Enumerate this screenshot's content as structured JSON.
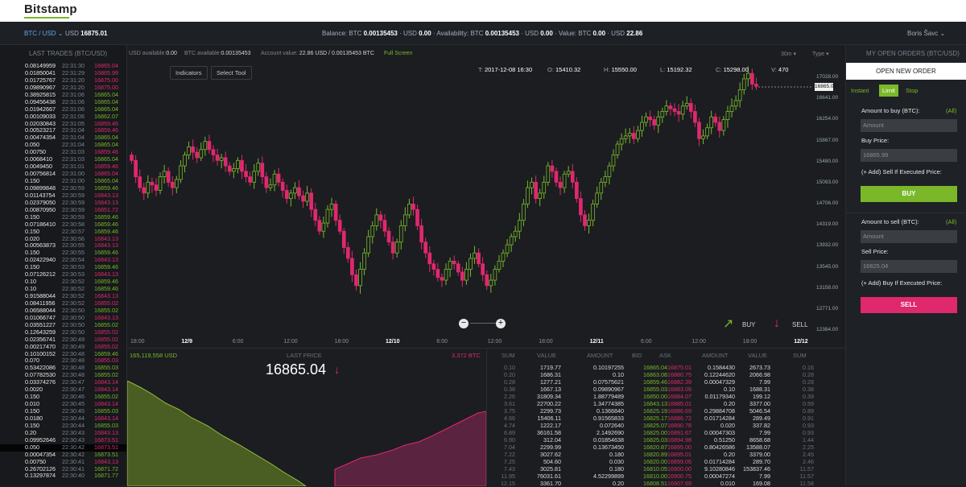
{
  "app": {
    "logo": "Bitstamp"
  },
  "header": {
    "pair": "BTC / USD ⌄",
    "price_label": "USD",
    "price": "16875.01",
    "balance_label": "Balance: BTC",
    "balance_btc": "0.00135453",
    "balance_usd_label": "· USD",
    "balance_usd": "0.00",
    "avail_label": "· Availability: BTC",
    "avail_btc": "0.00135453",
    "avail_usd_label": "· USD",
    "avail_usd": "0.00",
    "value_label": "· Value: BTC",
    "value_btc": "0.00",
    "value_usd_label": "· USD",
    "value_usd": "22.86",
    "user": "Boris Šavc ⌄"
  },
  "last_trades": {
    "title": "LAST TRADES (BTC/USD)",
    "rows": [
      [
        "0.08149959",
        "22:31:30",
        "16865.04",
        "r"
      ],
      [
        "0.01850041",
        "22:31:29",
        "16865.99",
        "r"
      ],
      [
        "0.01725767",
        "22:31:20",
        "16875.00",
        "r"
      ],
      [
        "0.09890967",
        "22:31:20",
        "16875.00",
        "r"
      ],
      [
        "0.38925815",
        "22:31:06",
        "16865.04",
        "g"
      ],
      [
        "0.09456438",
        "22:31:06",
        "16865.04",
        "g"
      ],
      [
        "0.01942667",
        "22:31:06",
        "16865.04",
        "g"
      ],
      [
        "0.00109033",
        "22:31:06",
        "16862.07",
        "g"
      ],
      [
        "0.02030843",
        "22:31:05",
        "16859.46",
        "r"
      ],
      [
        "0.00523217",
        "22:31:04",
        "16859.46",
        "r"
      ],
      [
        "0.00474354",
        "22:31:04",
        "16865.04",
        "g"
      ],
      [
        "0.050",
        "22:31:04",
        "16865.04",
        "g"
      ],
      [
        "0.00750",
        "22:31:03",
        "16859.46",
        "r"
      ],
      [
        "0.0068410",
        "22:31:03",
        "16865.04",
        "g"
      ],
      [
        "0.0049450",
        "22:31:01",
        "16859.46",
        "r"
      ],
      [
        "0.00756814",
        "22:31:00",
        "16865.04",
        "r"
      ],
      [
        "0.150",
        "22:31:00",
        "16865.04",
        "g"
      ],
      [
        "0.09899848",
        "22:30:59",
        "16859.46",
        "g"
      ],
      [
        "0.01143754",
        "22:30:59",
        "16843.13",
        "r"
      ],
      [
        "0.02379050",
        "22:30:59",
        "16843.13",
        "r"
      ],
      [
        "0.00870950",
        "22:30:59",
        "16851.72",
        "r"
      ],
      [
        "0.150",
        "22:30:59",
        "16859.46",
        "g"
      ],
      [
        "0.07186410",
        "22:30:58",
        "16859.46",
        "g"
      ],
      [
        "0.150",
        "22:30:57",
        "16859.46",
        "g"
      ],
      [
        "0.020",
        "22:30:56",
        "16843.13",
        "r"
      ],
      [
        "0.00563873",
        "22:30:55",
        "16843.13",
        "r"
      ],
      [
        "0.150",
        "22:30:55",
        "16859.46",
        "g"
      ],
      [
        "0.02422940",
        "22:30:54",
        "16843.13",
        "r"
      ],
      [
        "0.150",
        "22:30:53",
        "16859.46",
        "g"
      ],
      [
        "0.07126212",
        "22:30:53",
        "16843.13",
        "r"
      ],
      [
        "0.10",
        "22:30:52",
        "16859.46",
        "g"
      ],
      [
        "0.10",
        "22:30:52",
        "16859.46",
        "g"
      ],
      [
        "0.91588044",
        "22:30:52",
        "16843.13",
        "r"
      ],
      [
        "0.08411956",
        "22:30:52",
        "16855.02",
        "r"
      ],
      [
        "0.06588044",
        "22:30:50",
        "16855.02",
        "g"
      ],
      [
        "0.01066747",
        "22:30:50",
        "16843.13",
        "r"
      ],
      [
        "0.03551227",
        "22:30:50",
        "16855.02",
        "g"
      ],
      [
        "0.12643259",
        "22:30:50",
        "16855.02",
        "r"
      ],
      [
        "0.02356741",
        "22:30:49",
        "16855.02",
        "r"
      ],
      [
        "0.00217470",
        "22:30:49",
        "16855.02",
        "r"
      ],
      [
        "0.10100152",
        "22:30:48",
        "16859.46",
        "g"
      ],
      [
        "0.070",
        "22:30:48",
        "16855.03",
        "r"
      ],
      [
        "0.53422086",
        "22:30:48",
        "16855.03",
        "g"
      ],
      [
        "0.07782530",
        "22:30:48",
        "16855.02",
        "g"
      ],
      [
        "0.03374276",
        "22:30:47",
        "16843.14",
        "r"
      ],
      [
        "0.0020",
        "22:30:47",
        "16843.14",
        "r"
      ],
      [
        "0.150",
        "22:30:46",
        "16855.02",
        "g"
      ],
      [
        "0.010",
        "22:30:45",
        "16843.14",
        "r"
      ],
      [
        "0.150",
        "22:30:45",
        "16855.03",
        "g"
      ],
      [
        "0.0180",
        "22:30:44",
        "16843.14",
        "r"
      ],
      [
        "0.150",
        "22:30:44",
        "16855.03",
        "g"
      ],
      [
        "0.20",
        "22:30:43",
        "16843.13",
        "r"
      ],
      [
        "0.09952646",
        "22:30:43",
        "16873.51",
        "r"
      ],
      [
        "0.050",
        "22:30:42",
        "16873.51",
        "r"
      ],
      [
        "0.00047354",
        "22:30:42",
        "16873.51",
        "g"
      ],
      [
        "0.00750",
        "22:30:41",
        "16843.13",
        "r"
      ],
      [
        "0.26702126",
        "22:30:41",
        "16871.72",
        "g"
      ],
      [
        "0.13297874",
        "22:30:40",
        "16871.77",
        "g"
      ]
    ]
  },
  "chart": {
    "balance_line": "USD available:",
    "usd_avail": "0.00",
    "btc_label": "BTC available:",
    "btc_avail": "0.00135453",
    "acct_label": "Account value:",
    "acct_value": "22.86 USD / 0.00135453 BTC",
    "fullscreen": "Full Screen",
    "interval": "30m ▾",
    "type": "Type ▾",
    "indicators": "Indicators",
    "select_tool": "Select Tool",
    "t_label": "T:",
    "t": "2017-12-08 16:30",
    "o_label": "O:",
    "o": "15410.32",
    "h_label": "H:",
    "h": "15550.00",
    "l_label": "L:",
    "l": "15192.32",
    "c_label": "C:",
    "c": "15298.00",
    "v_label": "V:",
    "v": "470",
    "current": "16865.04",
    "buy": "BUY",
    "sell": "SELL",
    "zoom_in": "+",
    "zoom_out": "−"
  },
  "chart_data": {
    "type": "candlestick",
    "y_ticks": [
      "17028.00",
      "16641.00",
      "16254.00",
      "15867.00",
      "15480.00",
      "15093.00",
      "14706.00",
      "14319.00",
      "13932.00",
      "13545.00",
      "13158.00",
      "12771.00",
      "12384.00"
    ],
    "x_ticks": [
      {
        "label": "18:00"
      },
      {
        "label": "12/9",
        "bold": true
      },
      {
        "label": "6:00"
      },
      {
        "label": "12:00"
      },
      {
        "label": "18:00"
      },
      {
        "label": "12/10",
        "bold": true
      },
      {
        "label": "6:00"
      },
      {
        "label": "12:00"
      },
      {
        "label": "18:00"
      },
      {
        "label": "12/11",
        "bold": true
      },
      {
        "label": "6:00"
      },
      {
        "label": "12:00"
      },
      {
        "label": "18:00"
      },
      {
        "label": "12/12",
        "bold": true
      }
    ],
    "closes": [
      15500,
      15200,
      15000,
      14900,
      15100,
      15050,
      14950,
      15200,
      15300,
      15100,
      15000,
      15150,
      15400,
      15600,
      15750,
      15650,
      15550,
      15700,
      15850,
      15700,
      15600,
      15500,
      15550,
      15400,
      15300,
      15350,
      15500,
      15300,
      15200,
      15100,
      15300,
      15450,
      15200,
      15000,
      15050,
      15250,
      15100,
      14950,
      14800,
      14900,
      15000,
      14850,
      14750,
      14900,
      14600,
      14400,
      14200,
      14350,
      14600,
      14700,
      14400,
      14200,
      13900,
      13700,
      13400,
      13200,
      13500,
      13800,
      14100,
      14300,
      14500,
      14400,
      14200,
      14000,
      13800,
      14000,
      14300,
      14500,
      14700,
      14600,
      14300,
      14000,
      13800,
      13600,
      13500,
      13350,
      13300,
      13500,
      13650,
      13600,
      13450,
      13300,
      13500,
      13700,
      13800,
      13600,
      13400,
      13200,
      13300,
      13500,
      13650,
      13800,
      13950,
      14100,
      14200,
      14400,
      14700,
      15000,
      15100,
      14800,
      14900,
      15100,
      15400,
      15300,
      15100,
      15000,
      15250,
      15300,
      15100,
      14800,
      14500,
      14300,
      14400,
      14700,
      14900,
      15100,
      15200,
      15400,
      15600,
      15800,
      15900,
      15950,
      16000,
      15900,
      16050,
      16200,
      16300,
      16250,
      16150,
      16300,
      16400,
      16500,
      16450,
      16400,
      16350,
      16500,
      16550,
      16400,
      16200,
      15900,
      15950,
      16100,
      16300,
      16200,
      16050,
      16250,
      16400,
      16500,
      16600,
      16800,
      17000,
      17100,
      16900,
      16865
    ]
  },
  "depth": {
    "bid_total": "165,119,558 USD",
    "last_price_label": "LAST PRICE",
    "ask_total": "3,372 BTC",
    "last_price": "16865.04",
    "arrow": "↓"
  },
  "orderbook": {
    "headers": [
      "SUM",
      "VALUE",
      "AMOUNT",
      "BID",
      "ASK",
      "AMOUNT",
      "VALUE",
      "SUM"
    ],
    "rows": [
      [
        "0.10",
        "1719.77",
        "0.10197255",
        "16865.04",
        "16875.01",
        "0.1584430",
        "2673.73",
        "0.16"
      ],
      [
        "0.20",
        "1686.31",
        "0.10",
        "16863.08",
        "16880.75",
        "0.12244620",
        "2066.98",
        "0.28"
      ],
      [
        "0.28",
        "1277.21",
        "0.07575621",
        "16859.46",
        "16882.39",
        "0.00047329",
        "7.99",
        "0.28"
      ],
      [
        "0.38",
        "1667.13",
        "0.09890967",
        "16855.03",
        "16883.09",
        "0.10",
        "1688.31",
        "0.38"
      ],
      [
        "2.26",
        "31809.34",
        "1.88779489",
        "16850.00",
        "16884.07",
        "0.01179340",
        "199.12",
        "0.39"
      ],
      [
        "3.61",
        "22700.22",
        "1.34774385",
        "16843.13",
        "16885.01",
        "0.20",
        "3377.00",
        "0.59"
      ],
      [
        "3.75",
        "2299.73",
        "0.1366840",
        "16825.19",
        "16886.69",
        "0.29884708",
        "5046.54",
        "0.89"
      ],
      [
        "4.66",
        "15406.11",
        "0.91565833",
        "16825.17",
        "16886.72",
        "0.01714284",
        "289.49",
        "0.91"
      ],
      [
        "4.74",
        "1222.17",
        "0.072640",
        "16825.07",
        "16890.78",
        "0.020",
        "337.82",
        "0.93"
      ],
      [
        "6.89",
        "36161.58",
        "2.1492690",
        "16825.00",
        "16891.67",
        "0.00047303",
        "7.99",
        "0.93"
      ],
      [
        "6.90",
        "312.04",
        "0.01854638",
        "16825.03",
        "16894.98",
        "0.51250",
        "8658.68",
        "1.44"
      ],
      [
        "7.04",
        "2299.99",
        "0.13673450",
        "16820.87",
        "16895.00",
        "0.80426586",
        "13588.07",
        "2.25"
      ],
      [
        "7.22",
        "3027.62",
        "0.180",
        "16820.89",
        "16895.01",
        "0.20",
        "3379.00",
        "2.45"
      ],
      [
        "7.25",
        "504.60",
        "0.030",
        "16820.00",
        "16899.05",
        "0.01714284",
        "289.70",
        "2.46"
      ],
      [
        "7.43",
        "3025.81",
        "0.180",
        "16810.05",
        "16900.00",
        "9.10280846",
        "153837.46",
        "11.57"
      ],
      [
        "11.95",
        "76031.61",
        "4.52299899",
        "16810.00",
        "16900.75",
        "0.00047274",
        "7.99",
        "11.57"
      ],
      [
        "12.15",
        "3361.70",
        "0.20",
        "16808.51",
        "16907.69",
        "0.010",
        "169.08",
        "11.58"
      ]
    ]
  },
  "orders": {
    "title": "MY OPEN ORDERS (BTC/USD)",
    "new_order": "OPEN NEW ORDER",
    "tabs": [
      "Instant",
      "Limit",
      "Stop"
    ],
    "buy_amount_label": "Amount to buy (BTC):",
    "all": "(All)",
    "amount_placeholder": "Amount",
    "buy_price_label": "Buy Price:",
    "buy_price": "16865.99",
    "sell_if_label": "(+ Add) Sell If Executed Price:",
    "buy_button": "BUY",
    "sell_amount_label": "Amount to sell (BTC):",
    "sell_price_label": "Sell Price:",
    "sell_price": "16825.04",
    "buy_if_label": "(+ Add) Buy If Executed Price:",
    "sell_button": "SELL"
  },
  "colors": {
    "green": "#7ab829",
    "red": "#e0286e"
  }
}
